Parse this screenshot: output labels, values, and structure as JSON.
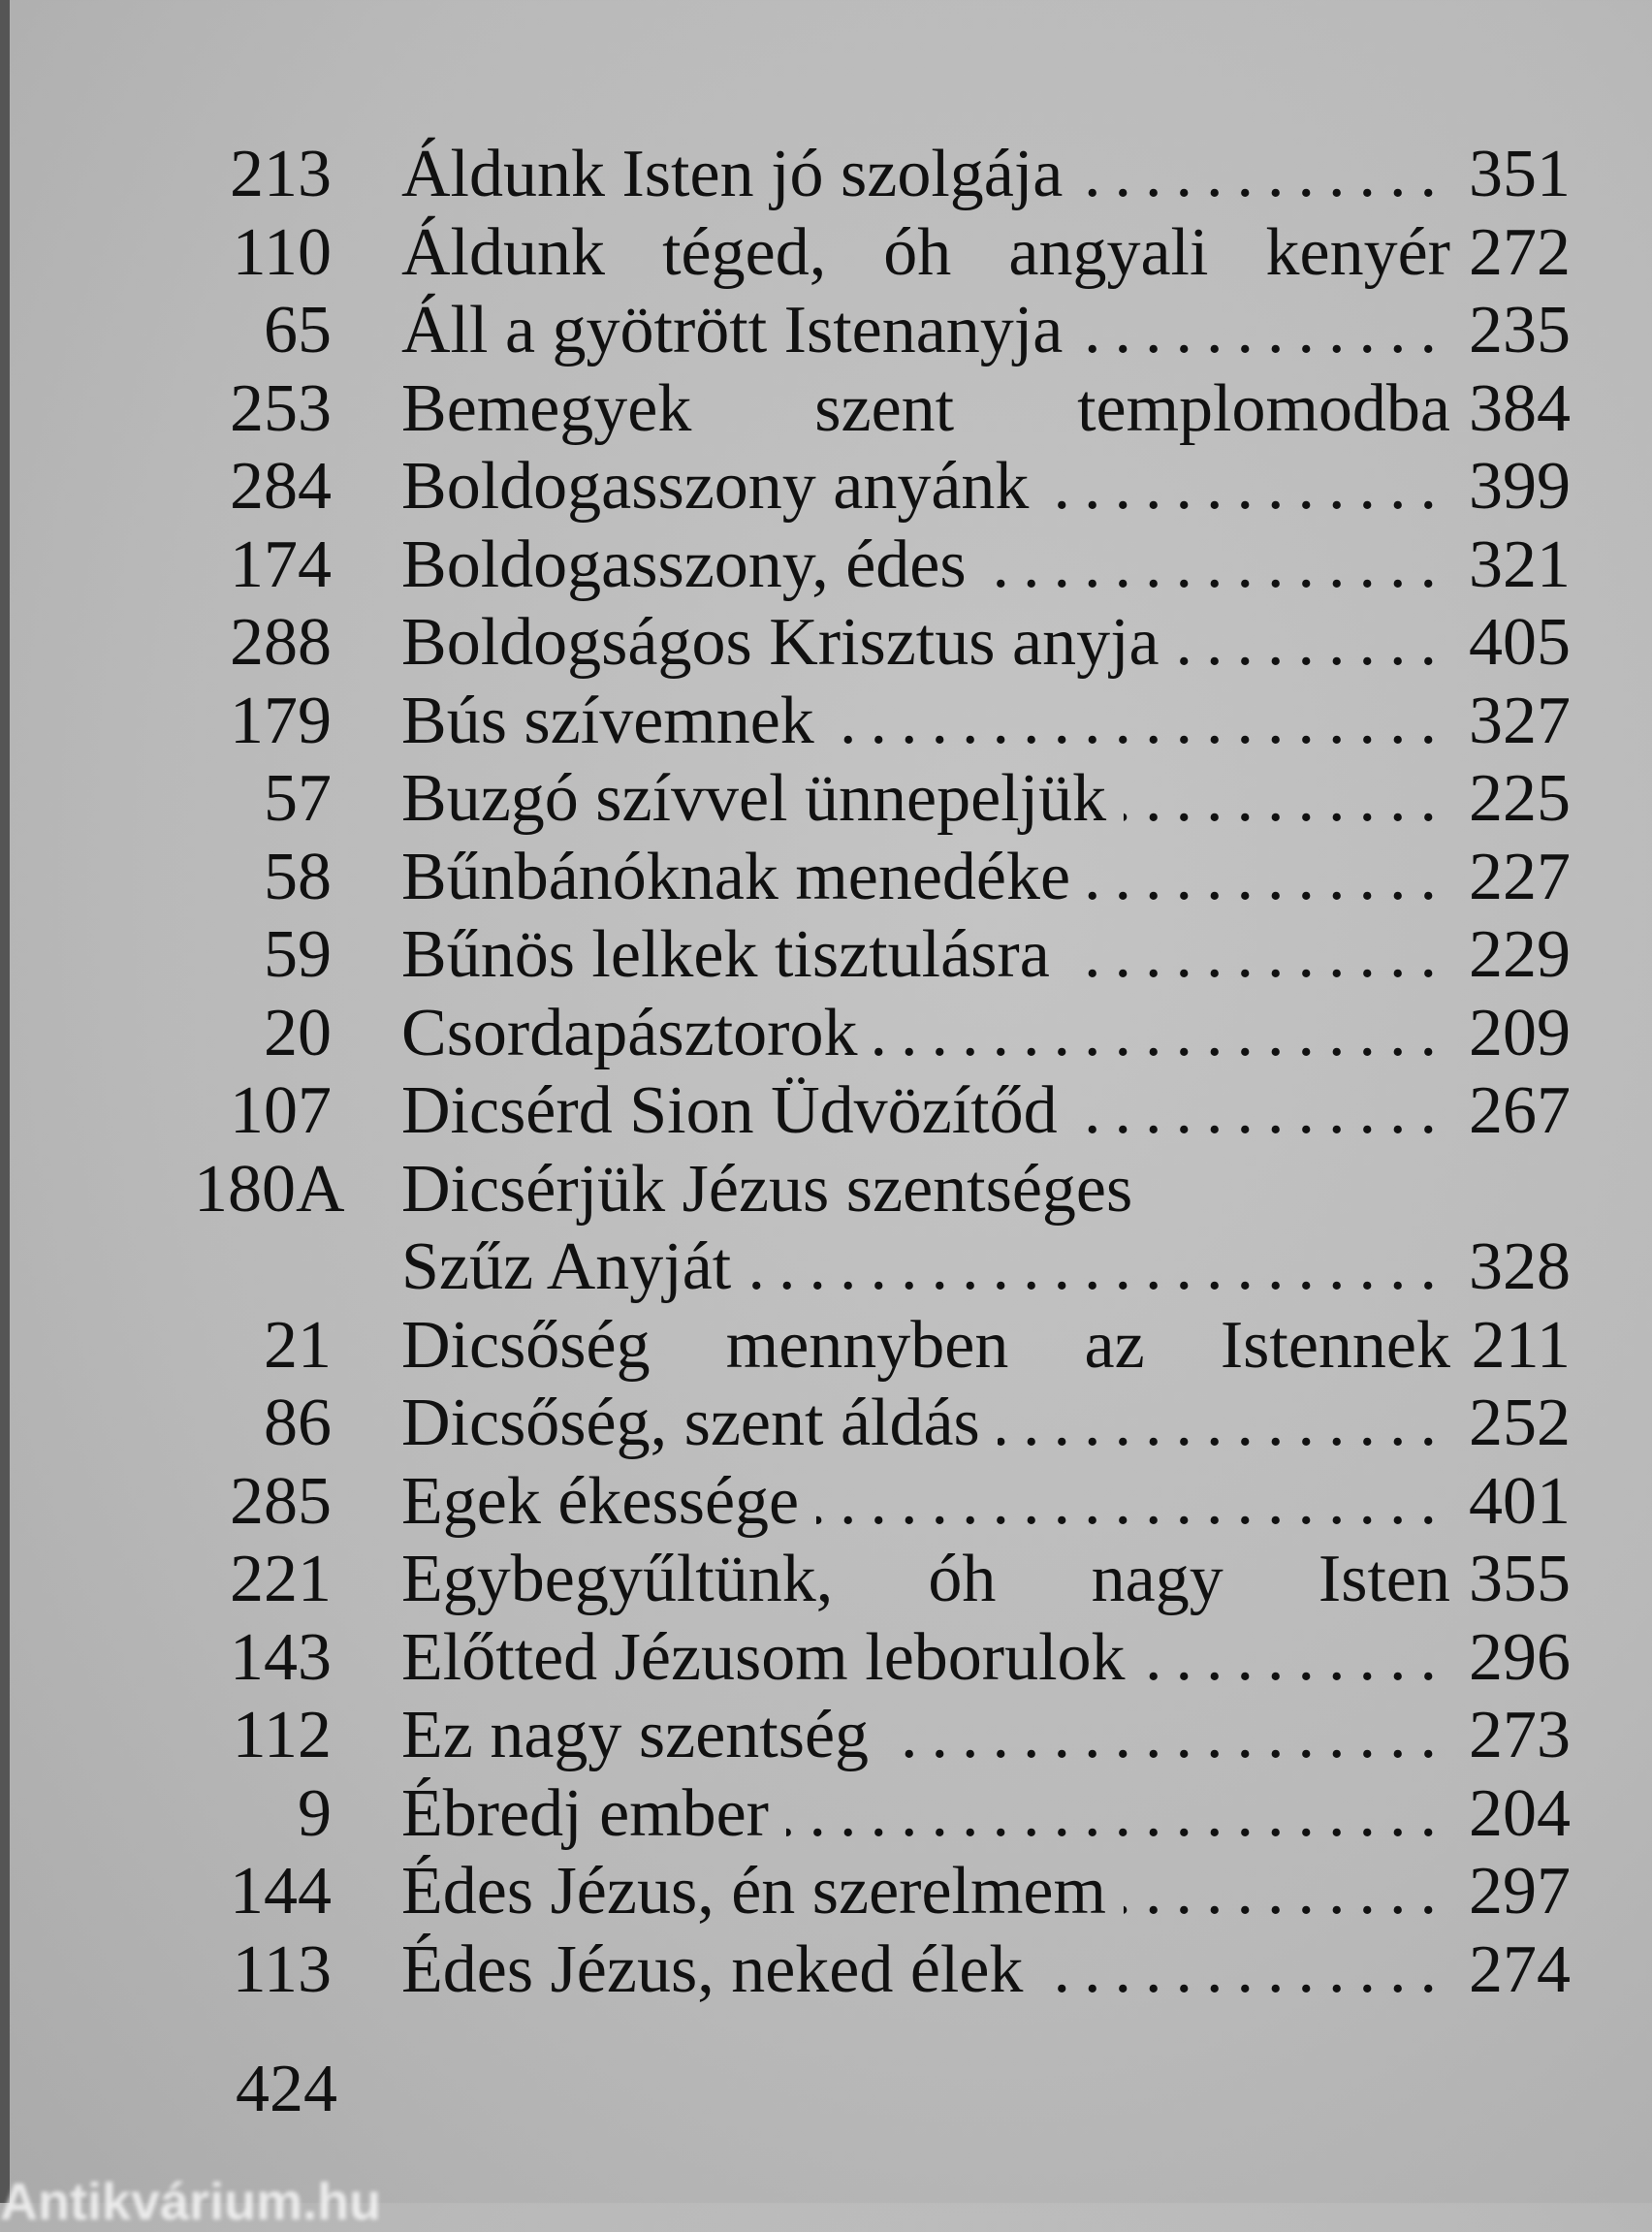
{
  "entries": [
    {
      "num": "213",
      "title": "Áldunk Isten jó szolgája",
      "page": "351",
      "leader": true
    },
    {
      "num": "110",
      "title": "Áldunk téged, óh angyali kenyér",
      "page": "272",
      "leader": false
    },
    {
      "num": "65",
      "title": "Áll a gyötrött Istenanyja",
      "page": "235",
      "leader": true
    },
    {
      "num": "253",
      "title": "Bemegyek szent templomodba",
      "page": "384",
      "leader": false
    },
    {
      "num": "284",
      "title": "Boldogasszony anyánk",
      "page": "399",
      "leader": true
    },
    {
      "num": "174",
      "title": "Boldogasszony, édes",
      "page": "321",
      "leader": true
    },
    {
      "num": "288",
      "title": "Boldogságos Krisztus anyja",
      "page": "405",
      "leader": true
    },
    {
      "num": "179",
      "title": "Bús szívemnek",
      "page": "327",
      "leader": true
    },
    {
      "num": "57",
      "title": "Buzgó szívvel ünnepeljük",
      "page": "225",
      "leader": true
    },
    {
      "num": "58",
      "title": "Bűnbánóknak menedéke",
      "page": "227",
      "leader": true
    },
    {
      "num": "59",
      "title": "Bűnös lelkek tisztulásra",
      "page": "229",
      "leader": true
    },
    {
      "num": "20",
      "title": "Csordapásztorok",
      "page": "209",
      "leader": true
    },
    {
      "num": "107",
      "title": "Dicsérd Sion Üdvözítőd",
      "page": "267",
      "leader": true
    },
    {
      "num": "180A",
      "title": "Dicsérjük Jézus szentséges",
      "page": "",
      "leader": false,
      "nojust": true
    },
    {
      "num": "",
      "title": "Szűz Anyját",
      "page": "328",
      "leader": true
    },
    {
      "num": "21",
      "title": "Dicsőség mennyben az Istennek",
      "page": "211",
      "leader": false
    },
    {
      "num": "86",
      "title": "Dicsőség, szent áldás",
      "page": "252",
      "leader": true
    },
    {
      "num": "285",
      "title": "Egek ékessége",
      "page": "401",
      "leader": true
    },
    {
      "num": "221",
      "title": "Egybegyűltünk, óh nagy Isten",
      "page": "355",
      "leader": false
    },
    {
      "num": "143",
      "title": "Előtted Jézusom leborulok",
      "page": "296",
      "leader": true
    },
    {
      "num": "112",
      "title": "Ez nagy szentség",
      "page": "273",
      "leader": true
    },
    {
      "num": "9",
      "title": "Ébredj ember",
      "page": "204",
      "leader": true
    },
    {
      "num": "144",
      "title": "Édes Jézus, én szerelmem",
      "page": "297",
      "leader": true
    },
    {
      "num": "113",
      "title": "Édes Jézus, neked élek",
      "page": "274",
      "leader": true
    }
  ],
  "folio": "424",
  "watermark": "Antikvárium.hu"
}
